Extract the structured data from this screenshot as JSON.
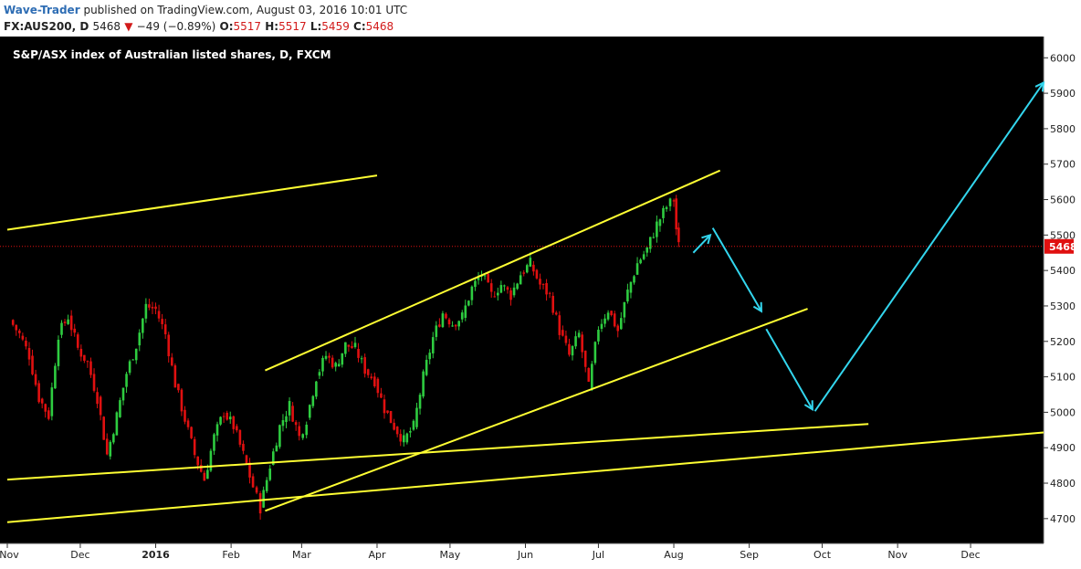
{
  "header": {
    "author": "Wave-Trader",
    "published_text": "published on TradingView.com, August 03, 2016 10:01 UTC",
    "symbol": "FX:AUS200, D",
    "last": "5468",
    "change": "−49 (−0.89%)",
    "o_label": "O:",
    "o_value": "5517",
    "h_label": "H:",
    "h_value": "5517",
    "l_label": "L:",
    "l_value": "5459",
    "c_label": "C:",
    "c_value": "5468"
  },
  "chart_data": {
    "type": "candlestick",
    "title": "S&P/ASX index of Australian listed shares, D, FXCM",
    "ylim": [
      4630,
      6060
    ],
    "y_ticks": [
      4700,
      4800,
      4900,
      5000,
      5100,
      5200,
      5300,
      5400,
      5500,
      5600,
      5700,
      5800,
      5900,
      6000
    ],
    "x_ticks": [
      "Nov",
      "Dec",
      "2016",
      "Feb",
      "Mar",
      "Apr",
      "May",
      "Jun",
      "Jul",
      "Aug",
      "Sep",
      "Oct",
      "Nov",
      "Dec"
    ],
    "x_range": [
      "2015-11-01",
      "2016-12-31"
    ],
    "last_price": 5468,
    "price_series_close": [
      [
        "2015-11-02",
        5260
      ],
      [
        "2015-11-06",
        5220
      ],
      [
        "2015-11-10",
        5160
      ],
      [
        "2015-11-14",
        5040
      ],
      [
        "2015-11-18",
        4990
      ],
      [
        "2015-11-22",
        5220
      ],
      [
        "2015-11-26",
        5270
      ],
      [
        "2015-11-30",
        5180
      ],
      [
        "2015-12-04",
        5140
      ],
      [
        "2015-12-08",
        5040
      ],
      [
        "2015-12-12",
        4880
      ],
      [
        "2015-12-16",
        4990
      ],
      [
        "2015-12-20",
        5110
      ],
      [
        "2015-12-24",
        5190
      ],
      [
        "2015-12-28",
        5300
      ],
      [
        "2016-01-01",
        5290
      ],
      [
        "2016-01-05",
        5220
      ],
      [
        "2016-01-09",
        5080
      ],
      [
        "2016-01-13",
        4980
      ],
      [
        "2016-01-17",
        4880
      ],
      [
        "2016-01-21",
        4810
      ],
      [
        "2016-01-25",
        4930
      ],
      [
        "2016-01-29",
        5000
      ],
      [
        "2016-02-02",
        4960
      ],
      [
        "2016-02-06",
        4880
      ],
      [
        "2016-02-10",
        4790
      ],
      [
        "2016-02-13",
        4730
      ],
      [
        "2016-02-17",
        4850
      ],
      [
        "2016-02-21",
        4960
      ],
      [
        "2016-02-25",
        5020
      ],
      [
        "2016-02-29",
        4930
      ],
      [
        "2016-03-03",
        4980
      ],
      [
        "2016-03-07",
        5100
      ],
      [
        "2016-03-11",
        5160
      ],
      [
        "2016-03-15",
        5130
      ],
      [
        "2016-03-19",
        5190
      ],
      [
        "2016-03-23",
        5180
      ],
      [
        "2016-03-27",
        5120
      ],
      [
        "2016-03-31",
        5090
      ],
      [
        "2016-04-04",
        5010
      ],
      [
        "2016-04-08",
        4960
      ],
      [
        "2016-04-12",
        4920
      ],
      [
        "2016-04-16",
        4960
      ],
      [
        "2016-04-20",
        5100
      ],
      [
        "2016-04-24",
        5210
      ],
      [
        "2016-04-28",
        5280
      ],
      [
        "2016-05-02",
        5250
      ],
      [
        "2016-05-06",
        5270
      ],
      [
        "2016-05-10",
        5350
      ],
      [
        "2016-05-14",
        5390
      ],
      [
        "2016-05-18",
        5330
      ],
      [
        "2016-05-22",
        5360
      ],
      [
        "2016-05-26",
        5330
      ],
      [
        "2016-05-30",
        5390
      ],
      [
        "2016-06-03",
        5420
      ],
      [
        "2016-06-07",
        5360
      ],
      [
        "2016-06-11",
        5330
      ],
      [
        "2016-06-15",
        5230
      ],
      [
        "2016-06-19",
        5160
      ],
      [
        "2016-06-23",
        5220
      ],
      [
        "2016-06-27",
        5070
      ],
      [
        "2016-07-01",
        5240
      ],
      [
        "2016-07-05",
        5290
      ],
      [
        "2016-07-09",
        5230
      ],
      [
        "2016-07-13",
        5340
      ],
      [
        "2016-07-17",
        5420
      ],
      [
        "2016-07-21",
        5460
      ],
      [
        "2016-07-25",
        5530
      ],
      [
        "2016-07-29",
        5580
      ],
      [
        "2016-08-01",
        5600
      ],
      [
        "2016-08-02",
        5517
      ],
      [
        "2016-08-03",
        5468
      ]
    ],
    "trendlines": [
      {
        "from": [
          "2015-11-01",
          5515
        ],
        "to": [
          "2016-04-01",
          5668
        ],
        "color": "#ffff33"
      },
      {
        "from": [
          "2016-02-15",
          5118
        ],
        "to": [
          "2016-08-20",
          5682
        ],
        "color": "#ffff33"
      },
      {
        "from": [
          "2016-02-15",
          4722
        ],
        "to": [
          "2016-09-25",
          5292
        ],
        "color": "#ffff33"
      },
      {
        "from": [
          "2015-11-01",
          4810
        ],
        "to": [
          "2016-10-20",
          4967
        ],
        "color": "#ffff33"
      },
      {
        "from": [
          "2015-11-01",
          4690
        ],
        "to": [
          "2016-12-31",
          4943
        ],
        "color": "#ffff33"
      }
    ],
    "projections": [
      {
        "from": [
          "2016-08-09",
          5450
        ],
        "to": [
          "2016-08-16",
          5500
        ],
        "color": "#33d6ee"
      },
      {
        "from": [
          "2016-08-17",
          5520
        ],
        "to": [
          "2016-09-06",
          5285
        ],
        "color": "#33d6ee"
      },
      {
        "from": [
          "2016-09-08",
          5235
        ],
        "to": [
          "2016-09-27",
          5008
        ],
        "color": "#33d6ee"
      },
      {
        "from": [
          "2016-09-28",
          5003
        ],
        "to": [
          "2016-12-31",
          5930
        ],
        "color": "#33d6ee"
      }
    ]
  }
}
